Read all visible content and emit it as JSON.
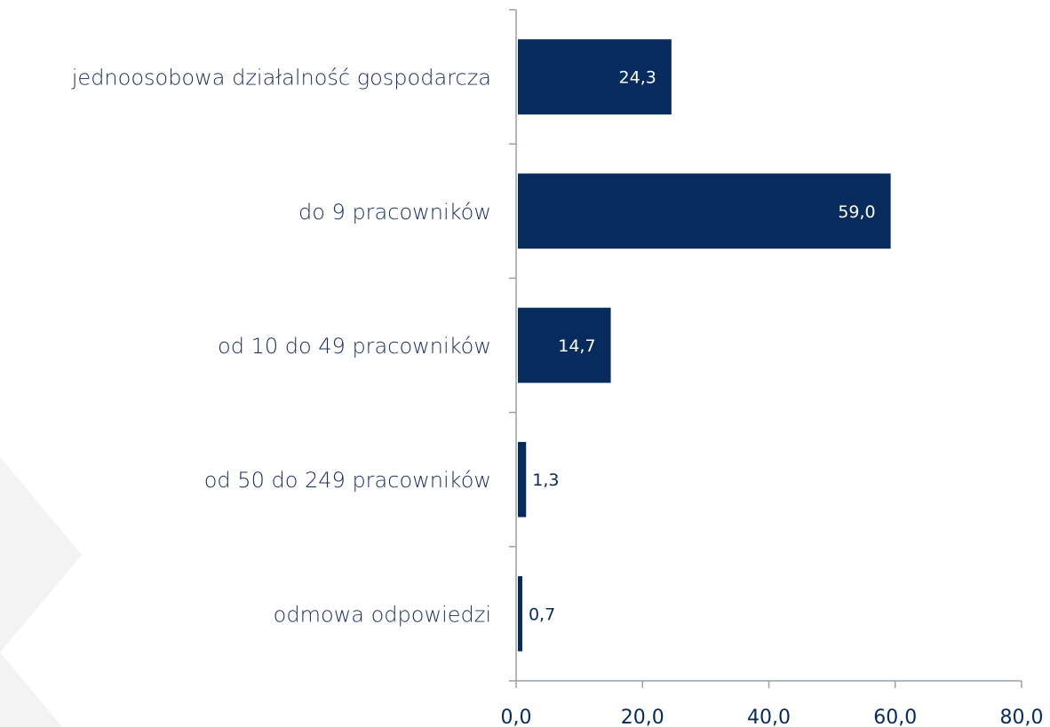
{
  "colors": {
    "bar": "#062b5c",
    "axis": "#9a9fa8",
    "deco": "#f3f3f4"
  },
  "chart_data": {
    "type": "bar",
    "orientation": "horizontal",
    "categories": [
      "jednoosobowa działalność gospodarcza",
      "do 9 pracowników",
      "od 10 do 49 pracowników",
      "od 50 do 249 pracowników",
      "odmowa odpowiedzi"
    ],
    "values": [
      24.3,
      59.0,
      14.7,
      1.3,
      0.7
    ],
    "value_labels": [
      "24,3",
      "59,0",
      "14,7",
      "1,3",
      "0,7"
    ],
    "xlim": [
      0,
      80
    ],
    "xticks": [
      0,
      20,
      40,
      60,
      80
    ],
    "xtick_labels": [
      "0,0",
      "20,0",
      "40,0",
      "60,0",
      "80,0"
    ],
    "grid": false,
    "legend": "none",
    "title": "",
    "xlabel": "",
    "ylabel": ""
  }
}
